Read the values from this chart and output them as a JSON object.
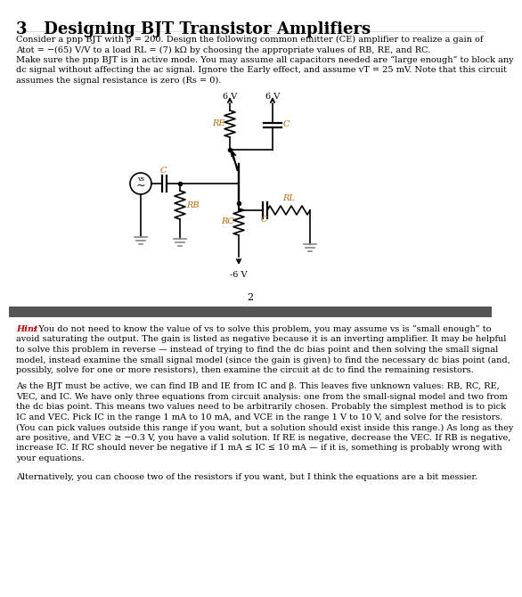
{
  "title": "3   Designing BJT Transistor Amplifiers",
  "bg_color": "#ffffff",
  "text_color": "#000000",
  "hint_color": "#cc0000",
  "divider_color": "#555555",
  "para1_lines": [
    "Consider a pnp BJT with β = 200. Design the following common emitter (CE) amplifier to realize a gain of",
    "Atot = −(65) V/V to a load RL = (7) kΩ by choosing the appropriate values of RB, RE, and RC.",
    "Make sure the pnp BJT is in active mode. You may assume all capacitors needed are “large enough” to block any",
    "dc signal without affecting the ac signal. Ignore the Early effect, and assume vT = 25 mV. Note that this circuit",
    "assumes the signal resistance is zero (Rs = 0)."
  ],
  "hint_intro": ": You do not need to know the value of vs to solve this problem, you may assume vs is “small enough” to",
  "hint_body": [
    "avoid saturating the output. The gain is listed as negative because it is an inverting amplifier. It may be helpful",
    "to solve this problem in reverse — instead of trying to find the dc bias point and then solving the small signal",
    "model, instead examine the small signal model (since the gain is given) to find the necessary dc bias point (and,",
    "possibly, solve for one or more resistors), then examine the circuit at dc to find the remaining resistors."
  ],
  "para2_lines": [
    "As the BJT must be active, we can find IB and IE from IC and β. This leaves five unknown values: RB, RC, RE,",
    "VEC, and IC. We have only three equations from circuit analysis: one from the small-signal model and two from",
    "the dc bias point. This means two values need to be arbitrarily chosen. Probably the simplest method is to pick",
    "IC and VEC. Pick IC in the range 1 mA to 10 mA, and VCE in the range 1 V to 10 V, and solve for the resistors.",
    "(You can pick values outside this range if you want, but a solution should exist inside this range.) As long as they",
    "are positive, and VEC ≥ −0.3 V, you have a valid solution. If RE is negative, decrease the VEC. If RB is negative,",
    "increase IC. If RC should never be negative if 1 mA ≤ IC ≤ 10 mA — if it is, something is probably wrong with",
    "your equations."
  ],
  "para3": "Alternatively, you can choose two of the resistors if you want, but I think the equations are a bit messier.",
  "page_number": "2",
  "label_RE": "RE",
  "label_RC": "RC",
  "label_RB": "RB",
  "label_RL": "RL",
  "label_C": "C",
  "label_vs": "vs",
  "label_6V": "6 V",
  "label_neg6V": "-6 V",
  "hint_label": "Hint"
}
